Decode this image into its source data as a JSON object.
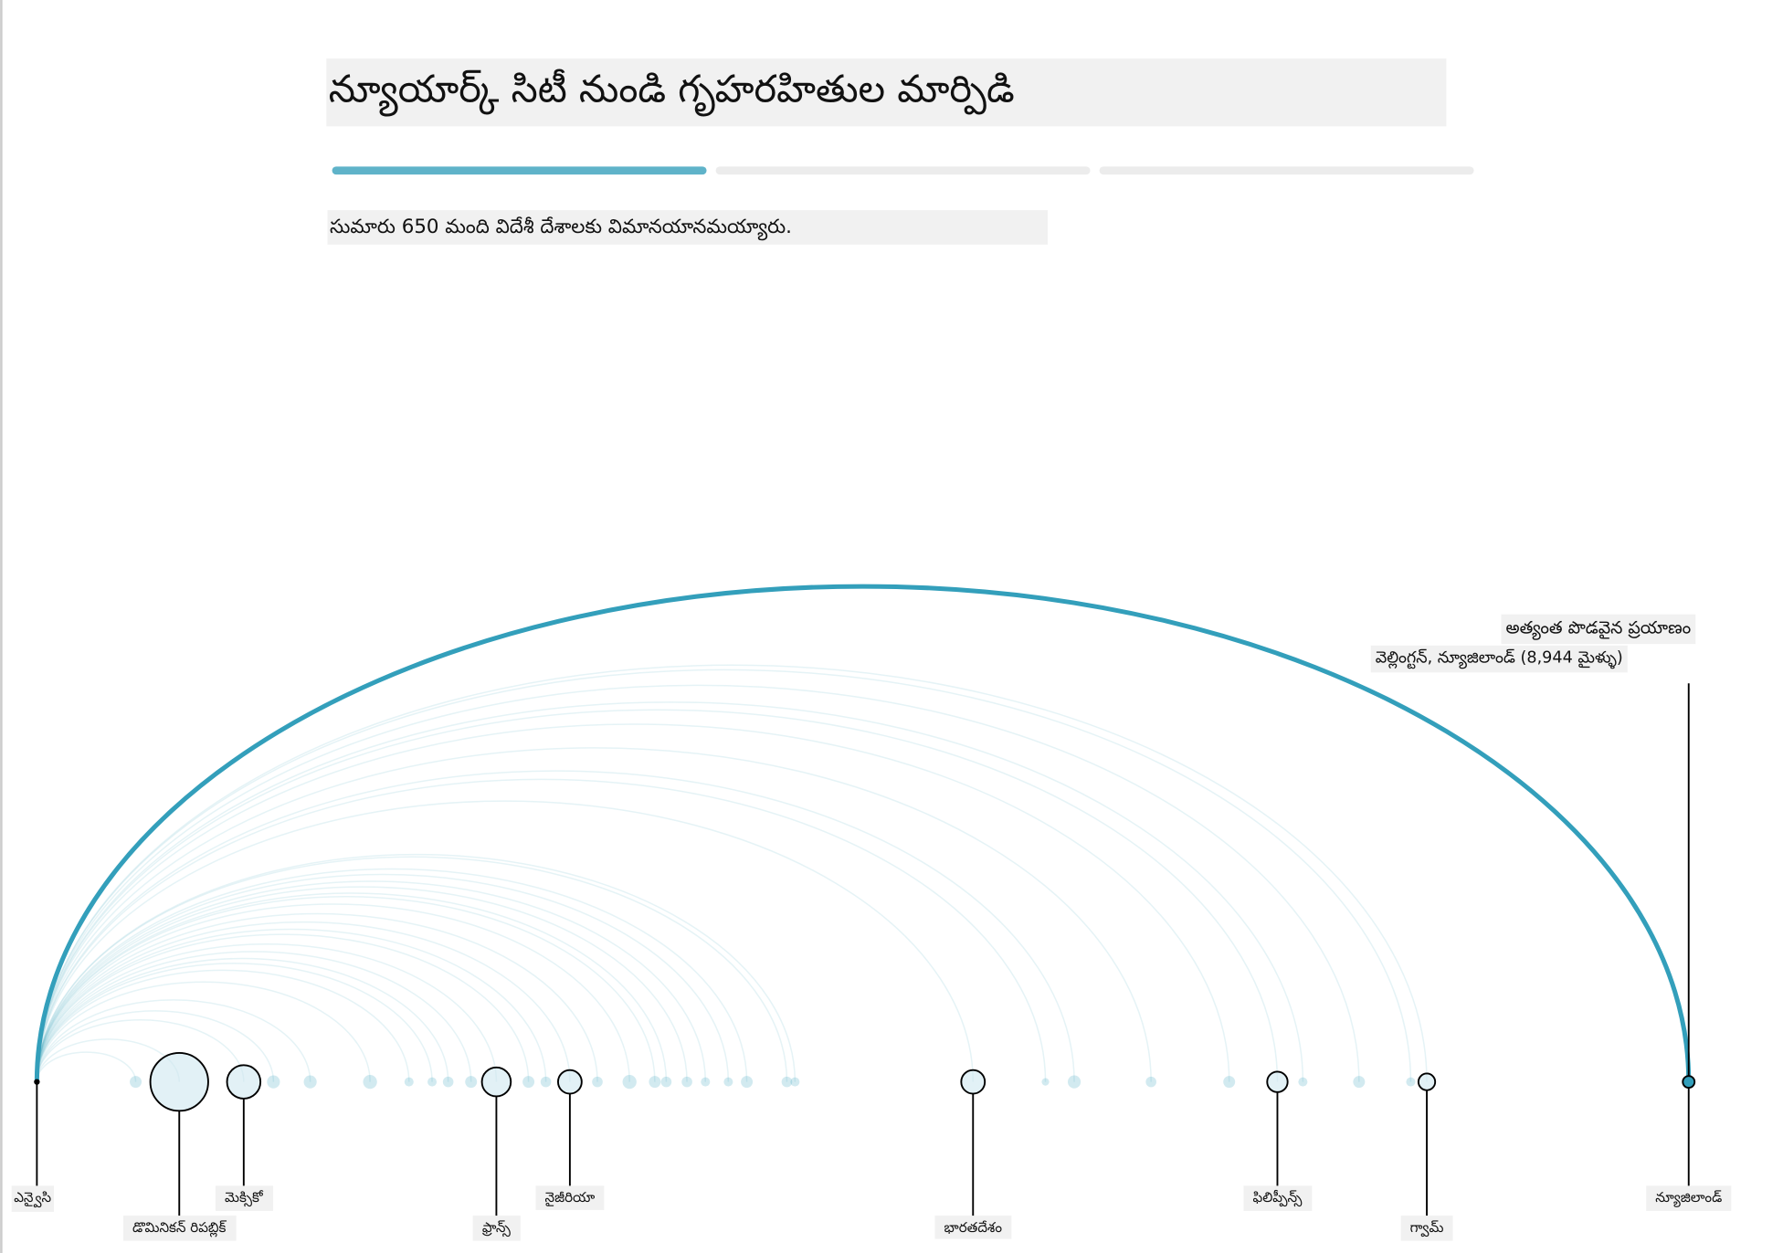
{
  "chart_data": {
    "type": "arc",
    "title": "న్యూయార్క్ సిటీ నుండి గృహరహితుల మార్పిడి",
    "subtitle": "సుమారు 650 మంది విదేశీ దేశాలకు విమానయానమయ్యారు.",
    "progress": {
      "steps": 3,
      "current": 1,
      "color": "#5fb3c9"
    },
    "annotation": {
      "title": "అత్యంత పొడవైన ప్రయాణం",
      "text": "వెల్లింగ్టన్, న్యూజిలాండ్ (8,944 మైళ్ళు)"
    },
    "origin": "ఎన్వైసి",
    "xlim": [
      0,
      8944
    ],
    "color": "#339fbb",
    "categories": [
      null,
      "డొమినికన్ రిపబ్లిక్",
      "మెక్సికో",
      null,
      null,
      null,
      null,
      null,
      null,
      null,
      "ఫ్రాన్స్",
      null,
      null,
      "నైజీరియా",
      null,
      null,
      null,
      null,
      null,
      null,
      null,
      null,
      null,
      null,
      "భారతదేశం",
      null,
      null,
      null,
      null,
      "ఫిలిప్పీన్స్",
      null,
      null,
      null,
      "గ్వామ్",
      "న్యూజిలాండ్"
    ],
    "values": [
      535,
      771,
      1120,
      1281,
      1480,
      1804,
      2015,
      2140,
      2227,
      2351,
      2488,
      2662,
      2756,
      2886,
      3035,
      3209,
      3346,
      3408,
      3520,
      3620,
      3744,
      3844,
      4061,
      4105,
      5069,
      5461,
      5617,
      6033,
      6456,
      6717,
      6855,
      7159,
      7439,
      7526,
      8944
    ],
    "sizes": [
      5,
      120,
      40,
      6,
      6,
      7,
      3,
      3,
      4,
      5,
      30,
      5,
      4,
      20,
      4,
      7,
      5,
      4,
      4,
      3,
      3,
      5,
      4,
      3,
      20,
      2,
      6,
      4,
      5,
      15,
      3,
      5,
      3,
      10,
      5
    ]
  }
}
